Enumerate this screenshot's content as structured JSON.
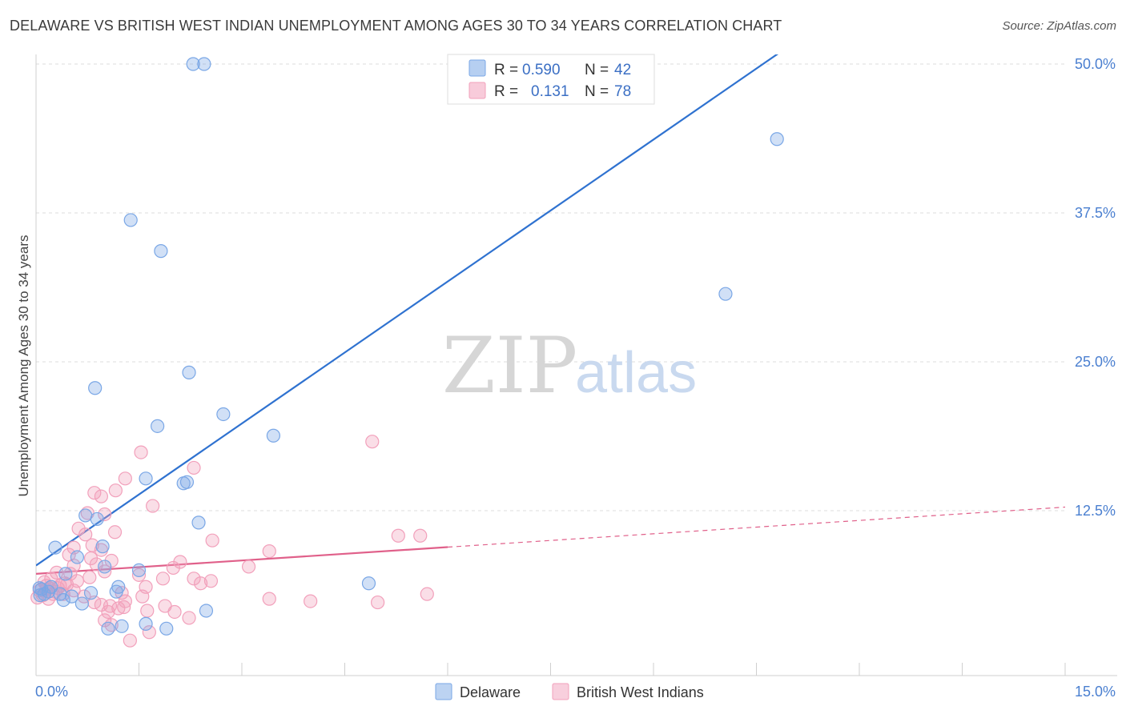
{
  "header": {
    "title": "DELAWARE VS BRITISH WEST INDIAN UNEMPLOYMENT AMONG AGES 30 TO 34 YEARS CORRELATION CHART",
    "source": "Source: ZipAtlas.com"
  },
  "watermark": {
    "zip": "ZIP",
    "atlas": "atlas"
  },
  "legend": {
    "rows": [
      {
        "r_label": "R =",
        "r_value": "0.590",
        "n_label": "N =",
        "n_value": "42",
        "color": "#7aa7e6"
      },
      {
        "r_label": "R =",
        "r_value": "0.131",
        "n_label": "N =",
        "n_value": "78",
        "color": "#f2a0bb"
      }
    ]
  },
  "bottom_legend": [
    "Delaware",
    "British West Indians"
  ],
  "chart_data": {
    "type": "scatter",
    "title": "DELAWARE VS BRITISH WEST INDIAN UNEMPLOYMENT AMONG AGES 30 TO 34 YEARS CORRELATION CHART",
    "xlabel": "",
    "ylabel": "Unemployment Among Ages 30 to 34 years",
    "xlim": [
      0,
      15
    ],
    "ylim": [
      0,
      52
    ],
    "x_tick_labels": [
      "0.0%",
      "15.0%"
    ],
    "y_ticks": [
      12.5,
      25.0,
      37.5,
      50.0
    ],
    "y_tick_labels": [
      "12.5%",
      "25.0%",
      "37.5%",
      "50.0%"
    ],
    "grid": true,
    "series": [
      {
        "name": "Delaware",
        "color": "#7aa7e6",
        "line_color": "#2f72d0",
        "trend": {
          "x0": 0,
          "y0": 7.9,
          "x1": 15,
          "y1": 67.5,
          "solid_until": 15
        },
        "points": [
          [
            2.29,
            50.0
          ],
          [
            2.45,
            50.0
          ],
          [
            10.8,
            43.7
          ],
          [
            1.38,
            36.9
          ],
          [
            1.82,
            34.3
          ],
          [
            10.05,
            30.7
          ],
          [
            2.23,
            24.1
          ],
          [
            0.86,
            22.8
          ],
          [
            2.73,
            20.6
          ],
          [
            1.77,
            19.6
          ],
          [
            3.46,
            18.8
          ],
          [
            1.6,
            15.2
          ],
          [
            2.15,
            14.8
          ],
          [
            2.2,
            14.9
          ],
          [
            0.72,
            12.1
          ],
          [
            0.89,
            11.8
          ],
          [
            2.37,
            11.5
          ],
          [
            0.97,
            9.5
          ],
          [
            0.28,
            9.4
          ],
          [
            0.6,
            8.6
          ],
          [
            1.0,
            7.8
          ],
          [
            1.5,
            7.5
          ],
          [
            0.43,
            7.2
          ],
          [
            1.2,
            6.1
          ],
          [
            4.85,
            6.4
          ],
          [
            1.17,
            5.7
          ],
          [
            0.8,
            5.6
          ],
          [
            0.08,
            5.9
          ],
          [
            0.18,
            5.7
          ],
          [
            0.12,
            5.5
          ],
          [
            0.52,
            5.3
          ],
          [
            0.06,
            5.4
          ],
          [
            0.4,
            5.0
          ],
          [
            0.35,
            5.5
          ],
          [
            0.67,
            4.7
          ],
          [
            1.05,
            2.6
          ],
          [
            1.25,
            2.8
          ],
          [
            1.6,
            3.0
          ],
          [
            1.9,
            2.6
          ],
          [
            2.48,
            4.1
          ],
          [
            0.05,
            6.0
          ],
          [
            0.22,
            6.1
          ]
        ]
      },
      {
        "name": "British West Indians",
        "color": "#f2a0bb",
        "line_color": "#e0608a",
        "trend": {
          "x0": 0,
          "y0": 7.2,
          "x1": 15,
          "y1": 12.8,
          "solid_until": 6
        },
        "points": [
          [
            4.9,
            18.3
          ],
          [
            1.53,
            17.4
          ],
          [
            2.3,
            16.1
          ],
          [
            1.3,
            15.2
          ],
          [
            1.16,
            14.2
          ],
          [
            0.85,
            14.0
          ],
          [
            0.95,
            13.7
          ],
          [
            1.7,
            12.9
          ],
          [
            1.0,
            12.2
          ],
          [
            0.75,
            12.3
          ],
          [
            0.62,
            11.0
          ],
          [
            1.15,
            10.7
          ],
          [
            0.72,
            10.5
          ],
          [
            5.28,
            10.4
          ],
          [
            5.6,
            10.4
          ],
          [
            2.57,
            10.0
          ],
          [
            0.82,
            9.6
          ],
          [
            0.55,
            9.4
          ],
          [
            0.95,
            9.2
          ],
          [
            3.4,
            9.1
          ],
          [
            0.8,
            8.5
          ],
          [
            0.48,
            8.8
          ],
          [
            2.1,
            8.2
          ],
          [
            1.1,
            8.3
          ],
          [
            0.55,
            7.9
          ],
          [
            0.88,
            8.0
          ],
          [
            3.1,
            7.8
          ],
          [
            2.0,
            7.7
          ],
          [
            1.0,
            7.4
          ],
          [
            0.3,
            7.3
          ],
          [
            1.5,
            7.1
          ],
          [
            0.78,
            6.9
          ],
          [
            0.22,
            6.8
          ],
          [
            0.6,
            6.6
          ],
          [
            0.42,
            6.4
          ],
          [
            1.6,
            6.1
          ],
          [
            2.3,
            6.8
          ],
          [
            2.55,
            6.6
          ],
          [
            2.4,
            6.4
          ],
          [
            1.85,
            6.8
          ],
          [
            0.2,
            6.0
          ],
          [
            0.35,
            6.2
          ],
          [
            0.05,
            5.8
          ],
          [
            0.15,
            5.9
          ],
          [
            0.28,
            5.7
          ],
          [
            0.1,
            5.4
          ],
          [
            0.02,
            5.2
          ],
          [
            0.4,
            5.5
          ],
          [
            0.18,
            5.1
          ],
          [
            0.55,
            5.8
          ],
          [
            0.7,
            5.3
          ],
          [
            1.25,
            5.6
          ],
          [
            1.55,
            5.3
          ],
          [
            1.3,
            4.9
          ],
          [
            0.85,
            4.8
          ],
          [
            1.08,
            4.5
          ],
          [
            0.95,
            4.6
          ],
          [
            1.05,
            4.0
          ],
          [
            1.2,
            4.3
          ],
          [
            1.28,
            4.4
          ],
          [
            1.62,
            4.1
          ],
          [
            1.88,
            4.5
          ],
          [
            2.02,
            4.0
          ],
          [
            3.4,
            5.1
          ],
          [
            4.0,
            4.9
          ],
          [
            4.98,
            4.8
          ],
          [
            5.7,
            5.5
          ],
          [
            2.23,
            3.5
          ],
          [
            1.0,
            3.3
          ],
          [
            1.1,
            2.9
          ],
          [
            1.65,
            2.3
          ],
          [
            1.37,
            1.6
          ],
          [
            0.15,
            6.2
          ],
          [
            0.25,
            5.5
          ],
          [
            0.32,
            6.0
          ],
          [
            0.45,
            6.3
          ],
          [
            0.12,
            6.5
          ],
          [
            0.5,
            7.2
          ]
        ]
      }
    ]
  }
}
